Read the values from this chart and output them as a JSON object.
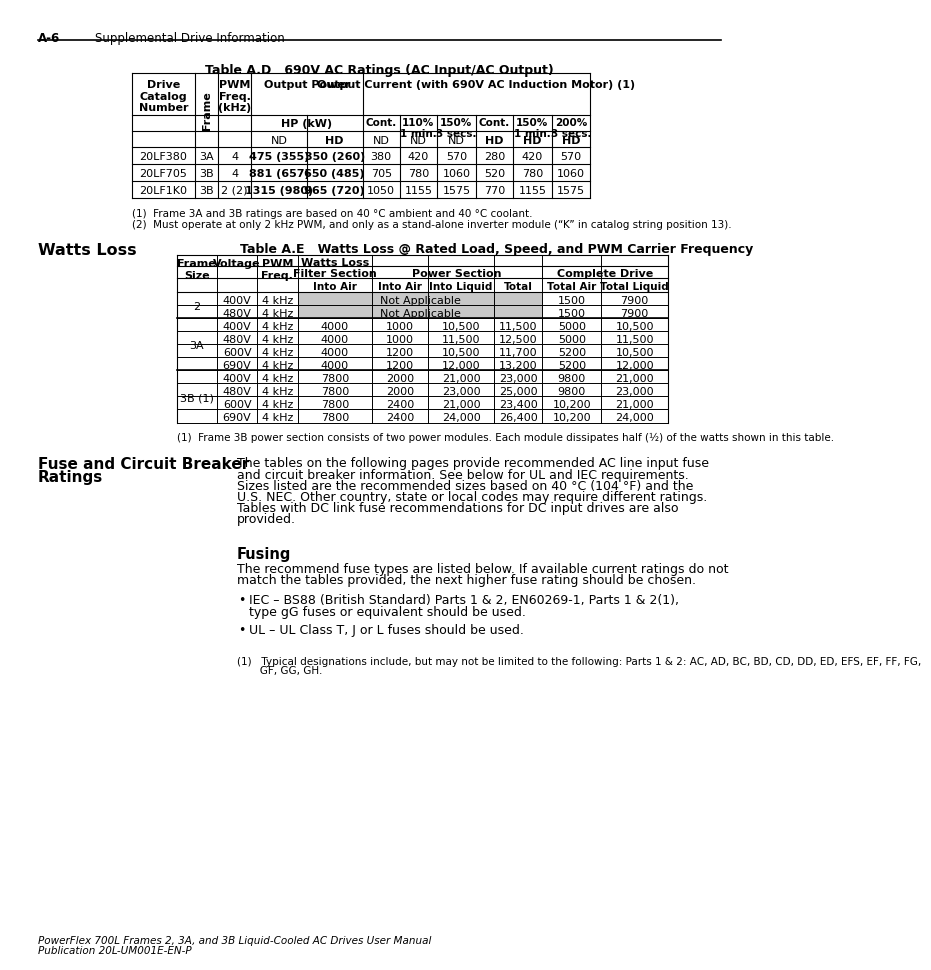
{
  "page_header_left": "A-6",
  "page_header_right": "Supplemental Drive Information",
  "bg_color": "#ffffff",
  "table_ad_title": "Table A.D   690V AC Ratings (AC Input/AC Output)",
  "table_ad_footnote1": "(1)  Frame 3A and 3B ratings are based on 40 °C ambient and 40 °C coolant.",
  "table_ad_footnote2": "(2)  Must operate at only 2 kHz PWM, and only as a stand-alone inverter module (“K” in catalog string position 13).",
  "table_ad_data": [
    [
      "20LF380",
      "3A",
      "4",
      "475 (355)",
      "350 (260)",
      "380",
      "420",
      "570",
      "280",
      "420",
      "570"
    ],
    [
      "20LF705",
      "3B",
      "4",
      "881 (657)",
      "650 (485)",
      "705",
      "780",
      "1060",
      "520",
      "780",
      "1060"
    ],
    [
      "20LF1K0",
      "3B",
      "2 (2)",
      "1315 (980)",
      "965 (720)",
      "1050",
      "1155",
      "1575",
      "770",
      "1155",
      "1575"
    ]
  ],
  "section_watts_loss_title": "Watts Loss",
  "table_ae_title": "Table A.E   Watts Loss @ Rated Load, Speed, and PWM Carrier Frequency",
  "table_ae_footnote": "(1)  Frame 3B power section consists of two power modules. Each module dissipates half (½) of the watts shown in this table.",
  "section_fuse_title": "Fuse and Circuit Breaker\nRatings",
  "fuse_body_lines": [
    "The tables on the following pages provide recommended AC line input fuse",
    "and circuit breaker information. See below for UL and IEC requirements.",
    "Sizes listed are the recommended sizes based on 40 °C (104 °F) and the",
    "U.S. NEC. Other country, state or local codes may require different ratings.",
    "Tables with DC link fuse recommendations for DC input drives are also",
    "provided."
  ],
  "fusing_subtitle": "Fusing",
  "fusing_body_lines": [
    "The recommend fuse types are listed below. If available current ratings do not",
    "match the tables provided, the next higher fuse rating should be chosen."
  ],
  "fusing_bullet1_lines": [
    "IEC – BS88 (British Standard) Parts 1 & 2, EN60269-1, Parts 1 & 2(1),",
    "type gG fuses or equivalent should be used."
  ],
  "fusing_bullet2": "UL – UL Class T, J or L fuses should be used.",
  "fusing_footnote_lines": [
    "(1)   Typical designations include, but may not be limited to the following: Parts 1 & 2: AC, AD, BC, BD, CD, DD, ED, EFS, EF, FF, FG,",
    "       GF, GG, GH."
  ],
  "footer_line1": "PowerFlex 700L Frames 2, 3A, and 3B Liquid-Cooled AC Drives User Manual",
  "footer_line2": "Publication 20L-UM001E-EN-P"
}
